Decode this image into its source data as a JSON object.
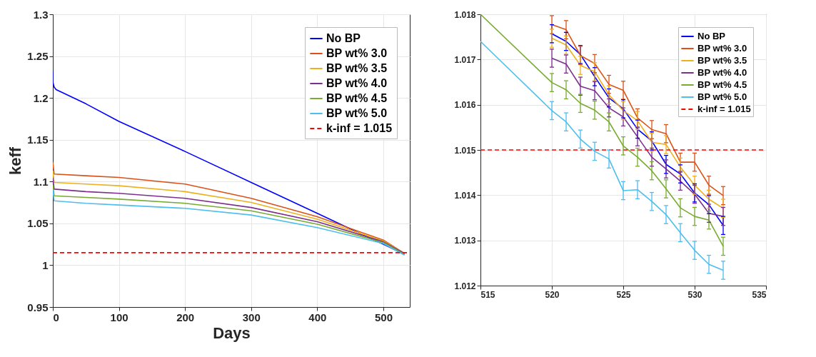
{
  "chart_data": [
    {
      "type": "line",
      "xlabel": "Days",
      "ylabel": "keff",
      "xlim": [
        0,
        540
      ],
      "xticks": [
        0,
        100,
        200,
        300,
        400,
        500
      ],
      "ylim": [
        0.95,
        1.3
      ],
      "yticks": [
        0.95,
        1,
        1.05,
        1.1,
        1.15,
        1.2,
        1.25,
        1.3
      ],
      "grid": true,
      "legend": "top right",
      "marker": "none",
      "line_style": "solid",
      "series": [
        {
          "name": "No BP",
          "color": "#0000ff",
          "x": [
            0,
            0,
            2,
            5,
            50,
            100,
            200,
            300,
            400,
            500,
            532
          ],
          "values": [
            1.232,
            1.219,
            1.213,
            1.21,
            1.193,
            1.172,
            1.136,
            1.099,
            1.062,
            1.025,
            1.013
          ]
        },
        {
          "name": "BP wt% 3.0",
          "color": "#d95319",
          "x": [
            0,
            2,
            50,
            100,
            200,
            300,
            400,
            500,
            532
          ],
          "values": [
            1.123,
            1.109,
            1.107,
            1.105,
            1.097,
            1.08,
            1.058,
            1.03,
            1.014
          ]
        },
        {
          "name": "BP wt% 3.5",
          "color": "#edb120",
          "x": [
            0,
            2,
            50,
            100,
            200,
            300,
            400,
            500,
            532
          ],
          "values": [
            1.113,
            1.099,
            1.097,
            1.095,
            1.088,
            1.075,
            1.055,
            1.029,
            1.014
          ]
        },
        {
          "name": "BP wt% 4.0",
          "color": "#7e2f8e",
          "x": [
            0,
            2,
            50,
            100,
            200,
            300,
            400,
            500,
            532
          ],
          "values": [
            1.104,
            1.091,
            1.088,
            1.086,
            1.08,
            1.069,
            1.052,
            1.028,
            1.014
          ]
        },
        {
          "name": "BP wt% 4.5",
          "color": "#77ac30",
          "x": [
            0,
            2,
            50,
            100,
            200,
            300,
            400,
            500,
            532
          ],
          "values": [
            1.096,
            1.083,
            1.081,
            1.079,
            1.074,
            1.065,
            1.049,
            1.027,
            1.013
          ]
        },
        {
          "name": "BP wt% 5.0",
          "color": "#4dbeee",
          "x": [
            0,
            2,
            50,
            100,
            200,
            300,
            400,
            500,
            532
          ],
          "values": [
            1.09,
            1.077,
            1.074,
            1.072,
            1.068,
            1.06,
            1.045,
            1.026,
            1.012
          ]
        }
      ],
      "ref_lines": [
        {
          "axis": "y",
          "value": 1.015,
          "label": "k-inf = 1.015",
          "color": "#ff0000",
          "line_style": "dashed"
        }
      ]
    },
    {
      "type": "line",
      "xlim": [
        515,
        535
      ],
      "xticks": [
        515,
        520,
        525,
        530,
        535
      ],
      "ylim": [
        1.012,
        1.018
      ],
      "yticks": [
        1.012,
        1.013,
        1.014,
        1.015,
        1.016,
        1.017,
        1.018
      ],
      "grid": true,
      "legend": "top right",
      "marker": "none",
      "line_style": "solid",
      "series": [
        {
          "name": "No BP",
          "color": "#0000ff",
          "x": [
            520,
            521,
            522,
            523,
            524,
            525,
            526,
            527,
            528,
            529,
            530,
            531,
            532
          ],
          "values": [
            1.01757,
            1.0174,
            1.01711,
            1.01662,
            1.01615,
            1.01591,
            1.01546,
            1.0152,
            1.01468,
            1.01447,
            1.01405,
            1.01379,
            1.01333
          ],
          "errors": [
            0.0002,
            0.0002,
            0.0002,
            0.0002,
            0.0002,
            0.0002,
            0.0002,
            0.0002,
            0.0002,
            0.0002,
            0.0002,
            0.0002,
            0.0002
          ]
        },
        {
          "name": "BP wt% 3.0",
          "color": "#d95319",
          "x": [
            520,
            521,
            522,
            523,
            524,
            525,
            526,
            527,
            528,
            529,
            530,
            531,
            532
          ],
          "values": [
            1.01777,
            1.01766,
            1.01709,
            1.01691,
            1.01645,
            1.01632,
            1.01571,
            1.01545,
            1.01536,
            1.01473,
            1.01473,
            1.01422,
            1.01399
          ],
          "errors": [
            0.0002,
            0.0002,
            0.0002,
            0.0002,
            0.0002,
            0.0002,
            0.0002,
            0.0002,
            0.0002,
            0.0002,
            0.0002,
            0.0002,
            0.0002
          ]
        },
        {
          "name": "BP wt% 3.5",
          "color": "#edb120",
          "x": [
            520,
            521,
            522,
            523,
            524,
            525,
            526,
            527,
            528,
            529,
            530,
            531,
            532
          ],
          "values": [
            1.01747,
            1.01732,
            1.01687,
            1.01673,
            1.01622,
            1.01587,
            1.01565,
            1.01517,
            1.01512,
            1.01462,
            1.01422,
            1.01391,
            1.01371
          ],
          "errors": [
            0.0002,
            0.0002,
            0.0002,
            0.0002,
            0.0002,
            0.0002,
            0.0002,
            0.0002,
            0.0002,
            0.0002,
            0.0002,
            0.0002,
            0.0002
          ]
        },
        {
          "name": "BP wt% 4.0",
          "color": "#7e2f8e",
          "x": [
            520,
            521,
            522,
            523,
            524,
            525,
            526,
            527,
            528,
            529,
            530,
            531,
            532
          ],
          "values": [
            1.01703,
            1.0169,
            1.01641,
            1.01631,
            1.01593,
            1.01573,
            1.01529,
            1.01484,
            1.01458,
            1.01431,
            1.01402,
            1.0136,
            1.01353
          ],
          "errors": [
            0.0002,
            0.0002,
            0.0002,
            0.0002,
            0.0002,
            0.0002,
            0.0002,
            0.0002,
            0.0002,
            0.0002,
            0.0002,
            0.0002,
            0.0002
          ]
        },
        {
          "name": "BP wt% 4.5",
          "color": "#77ac30",
          "x": [
            515,
            520,
            521,
            522,
            523,
            524,
            525,
            526,
            527,
            528,
            529,
            530,
            531,
            532
          ],
          "values": [
            1.018,
            1.01649,
            1.01633,
            1.01603,
            1.01588,
            1.01562,
            1.01509,
            1.01484,
            1.01454,
            1.01414,
            1.01372,
            1.01353,
            1.01345,
            1.01287
          ],
          "errors": [
            null,
            0.0002,
            0.0002,
            0.0002,
            0.0002,
            0.0002,
            0.0002,
            0.0002,
            0.0002,
            0.0002,
            0.0002,
            0.0002,
            0.0002,
            0.0002
          ]
        },
        {
          "name": "BP wt% 5.0",
          "color": "#4dbeee",
          "x": [
            515,
            520,
            521,
            522,
            523,
            524,
            525,
            526,
            527,
            528,
            529,
            530,
            531,
            532
          ],
          "values": [
            1.0174,
            1.01587,
            1.01562,
            1.01524,
            1.01497,
            1.0148,
            1.0141,
            1.01412,
            1.01386,
            1.01357,
            1.01317,
            1.01278,
            1.01247,
            1.01234
          ],
          "errors": [
            null,
            0.0002,
            0.0002,
            0.0002,
            0.0002,
            0.0002,
            0.0002,
            0.0002,
            0.0002,
            0.0002,
            0.0002,
            0.0002,
            0.0002,
            0.0002
          ]
        }
      ],
      "ref_lines": [
        {
          "axis": "y",
          "value": 1.015,
          "label": "k-inf = 1.015",
          "color": "#ff0000",
          "line_style": "dashed"
        }
      ]
    }
  ]
}
